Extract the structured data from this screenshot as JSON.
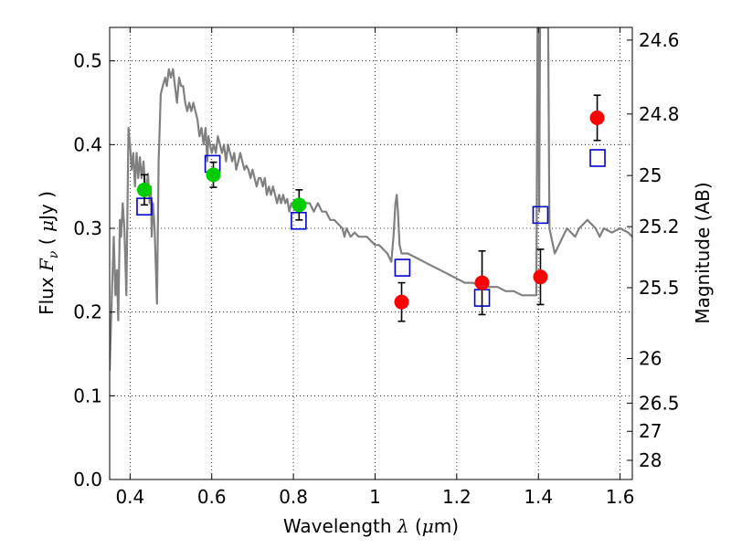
{
  "chart_data": {
    "type": "scatter",
    "xlabel": {
      "pre": "Wavelength  ",
      "sym": "λ",
      "post": " (",
      "mu": "μ",
      "unit": "m)"
    },
    "ylabel": {
      "pre": "Flux  ",
      "sym": "F",
      "sub": "ν",
      "mid": "  ( ",
      "mu": "μ",
      "post": "Jy )"
    },
    "y2label": "Magnitude (AB)",
    "xlim": [
      0.35,
      1.63
    ],
    "ylim": [
      0.0,
      0.54
    ],
    "grid": true,
    "x_ticks": [
      {
        "v": 0.4,
        "label": "0.4"
      },
      {
        "v": 0.6,
        "label": "0.6"
      },
      {
        "v": 0.8,
        "label": "0.8"
      },
      {
        "v": 1.0,
        "label": "1"
      },
      {
        "v": 1.2,
        "label": "1.2"
      },
      {
        "v": 1.4,
        "label": "1.4"
      },
      {
        "v": 1.6,
        "label": "1.6"
      }
    ],
    "y_ticks": [
      {
        "v": 0.0,
        "label": "0.0"
      },
      {
        "v": 0.1,
        "label": "0.1"
      },
      {
        "v": 0.2,
        "label": "0.2"
      },
      {
        "v": 0.3,
        "label": "0.3"
      },
      {
        "v": 0.4,
        "label": "0.4"
      },
      {
        "v": 0.5,
        "label": "0.5"
      }
    ],
    "y2_ticks": [
      {
        "mag": 24.6,
        "label": "24.6"
      },
      {
        "mag": 24.8,
        "label": "24.8"
      },
      {
        "mag": 25.0,
        "label": "25"
      },
      {
        "mag": 25.2,
        "label": "25.2"
      },
      {
        "mag": 25.5,
        "label": "25.5"
      },
      {
        "mag": 26.0,
        "label": "26"
      },
      {
        "mag": 26.5,
        "label": "26.5"
      },
      {
        "mag": 27.0,
        "label": "27"
      },
      {
        "mag": 28.0,
        "label": "28"
      }
    ],
    "series": [
      {
        "kind": "line",
        "color": "#808080",
        "points": [
          [
            0.35,
            0.13
          ],
          [
            0.356,
            0.23
          ],
          [
            0.36,
            0.29
          ],
          [
            0.364,
            0.22
          ],
          [
            0.368,
            0.25
          ],
          [
            0.371,
            0.19
          ],
          [
            0.375,
            0.31
          ],
          [
            0.378,
            0.29
          ],
          [
            0.382,
            0.33
          ],
          [
            0.386,
            0.3
          ],
          [
            0.391,
            0.22
          ],
          [
            0.396,
            0.42
          ],
          [
            0.4,
            0.4
          ],
          [
            0.404,
            0.37
          ],
          [
            0.408,
            0.39
          ],
          [
            0.412,
            0.35
          ],
          [
            0.416,
            0.39
          ],
          [
            0.42,
            0.36
          ],
          [
            0.424,
            0.385
          ],
          [
            0.428,
            0.36
          ],
          [
            0.433,
            0.38
          ],
          [
            0.438,
            0.34
          ],
          [
            0.444,
            0.365
          ],
          [
            0.448,
            0.33
          ],
          [
            0.451,
            0.35
          ],
          [
            0.453,
            0.29
          ],
          [
            0.456,
            0.33
          ],
          [
            0.46,
            0.3
          ],
          [
            0.466,
            0.21
          ],
          [
            0.47,
            0.38
          ],
          [
            0.475,
            0.46
          ],
          [
            0.48,
            0.47
          ],
          [
            0.486,
            0.48
          ],
          [
            0.49,
            0.47
          ],
          [
            0.495,
            0.49
          ],
          [
            0.5,
            0.48
          ],
          [
            0.505,
            0.49
          ],
          [
            0.51,
            0.47
          ],
          [
            0.515,
            0.45
          ],
          [
            0.52,
            0.48
          ],
          [
            0.525,
            0.47
          ],
          [
            0.53,
            0.47
          ],
          [
            0.535,
            0.45
          ],
          [
            0.54,
            0.44
          ],
          [
            0.545,
            0.45
          ],
          [
            0.55,
            0.44
          ],
          [
            0.555,
            0.45
          ],
          [
            0.56,
            0.44
          ],
          [
            0.565,
            0.43
          ],
          [
            0.57,
            0.41
          ],
          [
            0.575,
            0.42
          ],
          [
            0.58,
            0.4
          ],
          [
            0.585,
            0.42
          ],
          [
            0.589,
            0.38
          ],
          [
            0.592,
            0.41
          ],
          [
            0.596,
            0.4
          ],
          [
            0.6,
            0.39
          ],
          [
            0.605,
            0.4
          ],
          [
            0.61,
            0.39
          ],
          [
            0.615,
            0.41
          ],
          [
            0.62,
            0.4
          ],
          [
            0.625,
            0.39
          ],
          [
            0.63,
            0.4
          ],
          [
            0.635,
            0.38
          ],
          [
            0.64,
            0.4
          ],
          [
            0.645,
            0.39
          ],
          [
            0.65,
            0.38
          ],
          [
            0.655,
            0.39
          ],
          [
            0.66,
            0.37
          ],
          [
            0.665,
            0.38
          ],
          [
            0.67,
            0.39
          ],
          [
            0.675,
            0.38
          ],
          [
            0.68,
            0.37
          ],
          [
            0.685,
            0.375
          ],
          [
            0.69,
            0.37
          ],
          [
            0.695,
            0.36
          ],
          [
            0.7,
            0.37
          ],
          [
            0.705,
            0.36
          ],
          [
            0.71,
            0.35
          ],
          [
            0.715,
            0.36
          ],
          [
            0.72,
            0.36
          ],
          [
            0.725,
            0.35
          ],
          [
            0.73,
            0.36
          ],
          [
            0.735,
            0.34
          ],
          [
            0.74,
            0.35
          ],
          [
            0.745,
            0.34
          ],
          [
            0.75,
            0.35
          ],
          [
            0.755,
            0.34
          ],
          [
            0.76,
            0.33
          ],
          [
            0.765,
            0.34
          ],
          [
            0.77,
            0.33
          ],
          [
            0.775,
            0.34
          ],
          [
            0.78,
            0.33
          ],
          [
            0.785,
            0.335
          ],
          [
            0.79,
            0.32
          ],
          [
            0.795,
            0.33
          ],
          [
            0.8,
            0.33
          ],
          [
            0.81,
            0.33
          ],
          [
            0.82,
            0.33
          ],
          [
            0.83,
            0.33
          ],
          [
            0.84,
            0.33
          ],
          [
            0.85,
            0.32
          ],
          [
            0.86,
            0.33
          ],
          [
            0.87,
            0.32
          ],
          [
            0.88,
            0.32
          ],
          [
            0.89,
            0.31
          ],
          [
            0.9,
            0.31
          ],
          [
            0.91,
            0.305
          ],
          [
            0.92,
            0.3
          ],
          [
            0.925,
            0.29
          ],
          [
            0.93,
            0.3
          ],
          [
            0.94,
            0.29
          ],
          [
            0.95,
            0.295
          ],
          [
            0.96,
            0.29
          ],
          [
            0.97,
            0.29
          ],
          [
            0.98,
            0.29
          ],
          [
            0.99,
            0.285
          ],
          [
            1.0,
            0.28
          ],
          [
            1.01,
            0.28
          ],
          [
            1.02,
            0.275
          ],
          [
            1.03,
            0.27
          ],
          [
            1.04,
            0.26
          ],
          [
            1.045,
            0.29
          ],
          [
            1.05,
            0.33
          ],
          [
            1.053,
            0.34
          ],
          [
            1.056,
            0.32
          ],
          [
            1.06,
            0.28
          ],
          [
            1.065,
            0.27
          ],
          [
            1.08,
            0.27
          ],
          [
            1.1,
            0.265
          ],
          [
            1.12,
            0.26
          ],
          [
            1.14,
            0.255
          ],
          [
            1.16,
            0.25
          ],
          [
            1.18,
            0.245
          ],
          [
            1.2,
            0.24
          ],
          [
            1.22,
            0.235
          ],
          [
            1.24,
            0.235
          ],
          [
            1.26,
            0.23
          ],
          [
            1.28,
            0.23
          ],
          [
            1.3,
            0.23
          ],
          [
            1.32,
            0.225
          ],
          [
            1.34,
            0.225
          ],
          [
            1.36,
            0.22
          ],
          [
            1.38,
            0.22
          ],
          [
            1.395,
            0.22
          ],
          [
            1.398,
            0.54
          ],
          [
            1.4,
            0.54
          ],
          [
            1.402,
            0.32
          ],
          [
            1.404,
            0.54
          ],
          [
            1.424,
            0.54
          ],
          [
            1.427,
            0.3
          ],
          [
            1.44,
            0.27
          ],
          [
            1.45,
            0.28
          ],
          [
            1.46,
            0.29
          ],
          [
            1.47,
            0.3
          ],
          [
            1.48,
            0.295
          ],
          [
            1.49,
            0.29
          ],
          [
            1.5,
            0.3
          ],
          [
            1.51,
            0.305
          ],
          [
            1.52,
            0.31
          ],
          [
            1.53,
            0.305
          ],
          [
            1.54,
            0.3
          ],
          [
            1.55,
            0.29
          ],
          [
            1.56,
            0.3
          ],
          [
            1.58,
            0.295
          ],
          [
            1.6,
            0.3
          ],
          [
            1.62,
            0.295
          ],
          [
            1.63,
            0.29
          ]
        ]
      },
      {
        "kind": "open-square",
        "color": "#0000cc",
        "points": [
          [
            0.435,
            0.326
          ],
          [
            0.602,
            0.377
          ],
          [
            0.813,
            0.309
          ],
          [
            1.067,
            0.253
          ],
          [
            1.262,
            0.217
          ],
          [
            1.405,
            0.316
          ],
          [
            1.545,
            0.384
          ]
        ]
      },
      {
        "kind": "filled-circle",
        "color": "#00cc00",
        "points": [
          [
            0.435,
            0.346,
            0.018
          ],
          [
            0.604,
            0.364,
            0.015
          ],
          [
            0.814,
            0.328,
            0.018
          ]
        ]
      },
      {
        "kind": "filled-circle",
        "color": "#ff0000",
        "points": [
          [
            1.065,
            0.212,
            0.023
          ],
          [
            1.262,
            0.235,
            0.038
          ],
          [
            1.405,
            0.242,
            0.033
          ],
          [
            1.544,
            0.432,
            0.027
          ]
        ]
      }
    ]
  }
}
